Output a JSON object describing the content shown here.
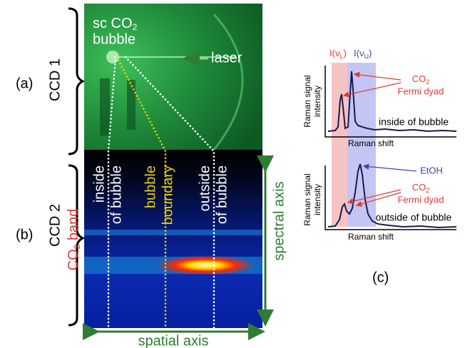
{
  "panel_labels": {
    "a": "(a)",
    "b": "(b)",
    "c": "(c)"
  },
  "ccd": [
    "CCD 1",
    "CCD 2"
  ],
  "image_a": {
    "bubble": {
      "main": "sc CO",
      "sub": "2",
      "line2": "bubble"
    },
    "laser": "laser"
  },
  "image_b": {
    "inside": [
      "inside",
      "of bubble"
    ],
    "boundary": [
      "bubble",
      "boundary"
    ],
    "outside": [
      "outside",
      "of bubble"
    ],
    "co2_band": {
      "main": "CO",
      "sub": "2",
      "rest": " band"
    }
  },
  "axes": {
    "spectral": "spectral axis",
    "spatial": "spatial axis"
  },
  "spectra": {
    "band_lower": {
      "pre": "I(ν",
      "sub": "L",
      "post": ")"
    },
    "band_upper": {
      "pre": "I(ν",
      "sub": "U",
      "post": ")"
    },
    "top": {
      "y_label": [
        "Raman signal",
        "intensity"
      ],
      "x_label": "Raman shift",
      "fermi": {
        "main": "CO",
        "sub": "2",
        "line2": "Fermi dyad"
      },
      "caption": "inside of bubble"
    },
    "bottom": {
      "y_label": [
        "Raman signal",
        "intensity"
      ],
      "x_label": "Raman shift",
      "etoh": "EtOH",
      "fermi": {
        "main": "CO",
        "sub": "2",
        "line2": "Fermi dyad"
      },
      "caption": "outside of bubble"
    }
  }
}
